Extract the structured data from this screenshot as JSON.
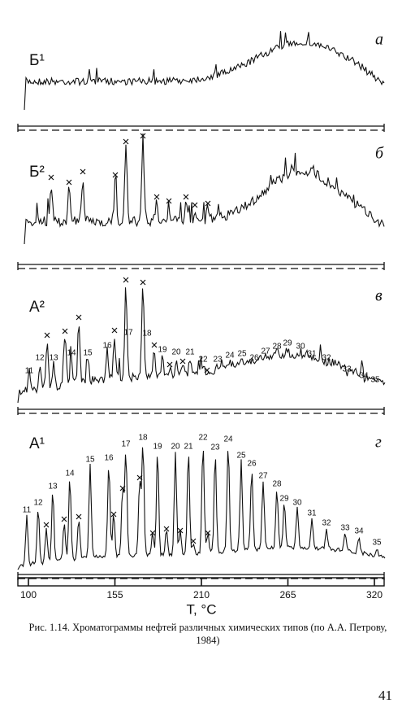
{
  "figure": {
    "panels": [
      {
        "label": "Б¹",
        "letter": "а",
        "peak_labels": []
      },
      {
        "label": "Б²",
        "letter": "б",
        "peak_labels": []
      },
      {
        "label": "А²",
        "letter": "в",
        "peak_labels": [
          "11",
          "12",
          "13",
          "14",
          "15",
          "16",
          "17",
          "18",
          "19",
          "20",
          "21",
          "22",
          "23",
          "24",
          "25",
          "26",
          "27",
          "28",
          "29",
          "30",
          "31",
          "32",
          "33",
          "34",
          "35"
        ]
      },
      {
        "label": "А¹",
        "letter": "г",
        "peak_labels": [
          "11",
          "12",
          "13",
          "14",
          "15",
          "16",
          "17",
          "18",
          "19",
          "20",
          "21",
          "22",
          "23",
          "24",
          "25",
          "26",
          "27",
          "28",
          "29",
          "30",
          "31",
          "32",
          "33",
          "34",
          "35"
        ]
      }
    ],
    "axis": {
      "xlim": [
        100,
        320
      ],
      "xticks": [
        100,
        155,
        210,
        265,
        320
      ],
      "label": "T, °C"
    }
  },
  "caption": "Рис. 1.14. Хроматограммы нефтей различных химических типов (по А.А. Петрову, 1984)",
  "page_number": "41"
}
